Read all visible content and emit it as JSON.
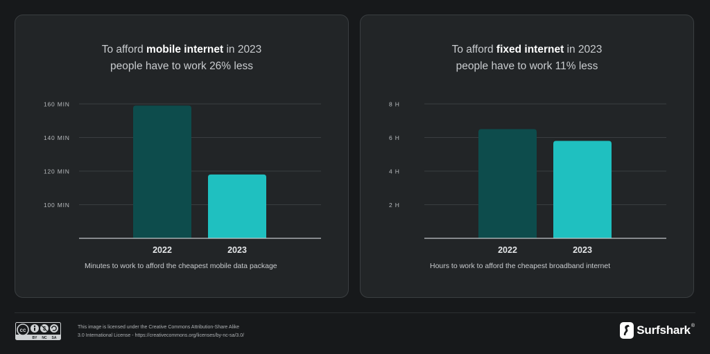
{
  "cards": [
    {
      "title_pre": "To afford ",
      "title_bold": "mobile internet",
      "title_post": " in 2023",
      "title_line2": "people have to work 26% less",
      "caption": "Minutes to work to afford the cheapest mobile data package"
    },
    {
      "title_pre": "To afford ",
      "title_bold": "fixed internet",
      "title_post": " in 2023",
      "title_line2": "people have to work 11% less",
      "caption": "Hours to work to afford the cheapest broadband internet"
    }
  ],
  "chart_data": [
    {
      "type": "bar",
      "categories": [
        "2022",
        "2023"
      ],
      "values": [
        159,
        118
      ],
      "ylim": [
        80,
        160
      ],
      "yticks": [
        100,
        120,
        140,
        160
      ],
      "ytick_labels": [
        "100 MIN",
        "120 MIN",
        "140 MIN",
        "160 MIN"
      ],
      "bar_colors": [
        "#0d4c4c",
        "#1fc0c0"
      ],
      "grid": true
    },
    {
      "type": "bar",
      "categories": [
        "2022",
        "2023"
      ],
      "values": [
        6.5,
        5.8
      ],
      "ylim": [
        0,
        8
      ],
      "yticks": [
        2,
        4,
        6,
        8
      ],
      "ytick_labels": [
        "2 H",
        "4 H",
        "6 H",
        "8 H"
      ],
      "bar_colors": [
        "#0d4c4c",
        "#1fc0c0"
      ],
      "grid": true
    }
  ],
  "footer": {
    "cc_badge_labels": [
      "BY",
      "NC",
      "SA"
    ],
    "license_line1": "This image is licensed under the Creative Commons Attribution-Share Alike",
    "license_line2": "3.0 International License - https://creativecommons.org/licenses/by-nc-sa/3.0/",
    "brand": "Surfshark",
    "brand_mark": "®"
  },
  "colors": {
    "background": "#17191b",
    "card": "#222527",
    "bar_2022": "#0d4c4c",
    "bar_2023": "#1fc0c0"
  }
}
